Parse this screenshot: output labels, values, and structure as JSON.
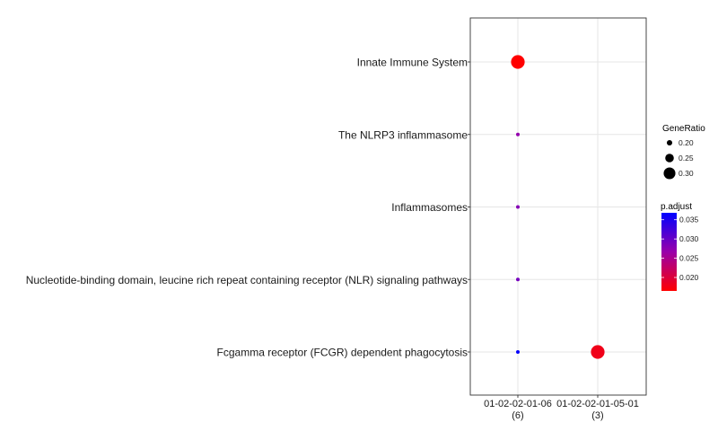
{
  "chart_data": {
    "type": "scatter",
    "title": "",
    "xlabel": "",
    "ylabel": "",
    "grid": true,
    "legend_position": "right",
    "x_categories": [
      {
        "label": "01-02-02-01-06",
        "count": "(6)"
      },
      {
        "label": "01-02-02-01-05-01",
        "count": "(3)"
      }
    ],
    "y_categories": [
      "Innate Immune System",
      "The NLRP3 inflammasome",
      "Inflammasomes",
      "Nucleotide-binding domain, leucine rich repeat containing receptor (NLR) signaling pathways",
      "Fcgamma receptor (FCGR) dependent phagocytosis"
    ],
    "points": [
      {
        "x": "01-02-02-01-06",
        "y": "Innate Immune System",
        "gene_ratio": 0.33,
        "p_adjust": 0.0165
      },
      {
        "x": "01-02-02-01-06",
        "y": "The NLRP3 inflammasome",
        "gene_ratio": 0.17,
        "p_adjust": 0.027
      },
      {
        "x": "01-02-02-01-06",
        "y": "Inflammasomes",
        "gene_ratio": 0.17,
        "p_adjust": 0.028
      },
      {
        "x": "01-02-02-01-06",
        "y": "Nucleotide-binding domain, leucine rich repeat containing receptor (NLR) signaling pathways",
        "gene_ratio": 0.17,
        "p_adjust": 0.029
      },
      {
        "x": "01-02-02-01-06",
        "y": "Fcgamma receptor (FCGR) dependent phagocytosis",
        "gene_ratio": 0.17,
        "p_adjust": 0.0365
      },
      {
        "x": "01-02-02-01-05-01",
        "y": "Fcgamma receptor (FCGR) dependent phagocytosis",
        "gene_ratio": 0.33,
        "p_adjust": 0.018
      }
    ],
    "size_legend": {
      "title": "GeneRatio",
      "items": [
        {
          "label": "0.20",
          "value": 0.2
        },
        {
          "label": "0.25",
          "value": 0.25
        },
        {
          "label": "0.30",
          "value": 0.3
        }
      ]
    },
    "color_legend": {
      "title": "p.adjust",
      "range": [
        0.0165,
        0.0368
      ],
      "low_color": "#ff0000",
      "high_color": "#0000ff",
      "ticks": [
        {
          "label": "0.035",
          "value": 0.035
        },
        {
          "label": "0.030",
          "value": 0.03
        },
        {
          "label": "0.025",
          "value": 0.025
        },
        {
          "label": "0.020",
          "value": 0.02
        }
      ]
    }
  }
}
